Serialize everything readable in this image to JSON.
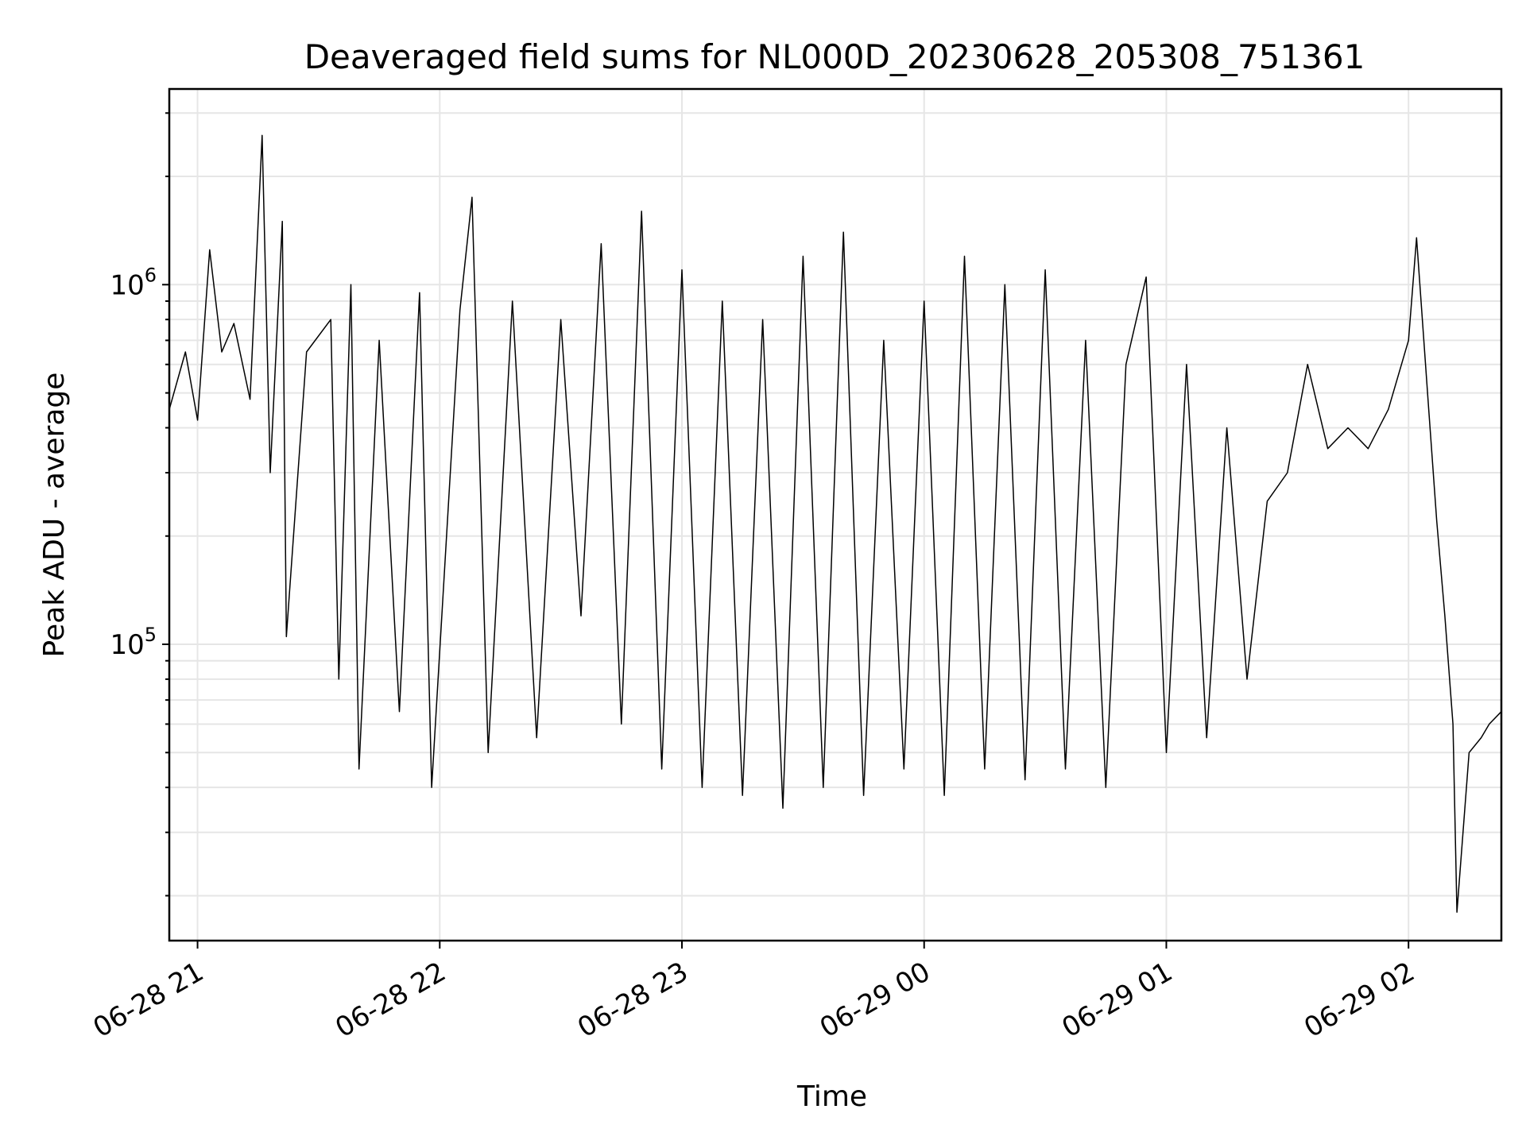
{
  "chart_data": {
    "type": "line",
    "title": "Deaveraged field sums for NL000D_20230628_205308_751361",
    "xlabel": "Time",
    "ylabel": "Peak ADU - average",
    "y_scale": "log",
    "ylim": [
      15000,
      3500000
    ],
    "xlim": [
      "2023-06-28 20:53",
      "2023-06-29 02:23"
    ],
    "grid": true,
    "line_color": "#000000",
    "x_ticks": [
      {
        "t": "2023-06-28 21:00",
        "label": "06-28 21"
      },
      {
        "t": "2023-06-28 22:00",
        "label": "06-28 22"
      },
      {
        "t": "2023-06-28 23:00",
        "label": "06-28 23"
      },
      {
        "t": "2023-06-29 00:00",
        "label": "06-29 00"
      },
      {
        "t": "2023-06-29 01:00",
        "label": "06-29 01"
      },
      {
        "t": "2023-06-29 02:00",
        "label": "06-29 02"
      }
    ],
    "y_ticks": [
      {
        "base": "10",
        "exp": "5",
        "value": 100000
      },
      {
        "base": "10",
        "exp": "6",
        "value": 1000000
      }
    ],
    "series": [
      {
        "values": [
          [
            "2023-06-28 20:53",
            450000
          ],
          [
            "2023-06-28 20:57",
            650000
          ],
          [
            "2023-06-28 21:00",
            420000
          ],
          [
            "2023-06-28 21:03",
            1250000
          ],
          [
            "2023-06-28 21:06",
            650000
          ],
          [
            "2023-06-28 21:09",
            780000
          ],
          [
            "2023-06-28 21:13",
            480000
          ],
          [
            "2023-06-28 21:16",
            2600000
          ],
          [
            "2023-06-28 21:18",
            300000
          ],
          [
            "2023-06-28 21:21",
            1500000
          ],
          [
            "2023-06-28 21:22",
            105000
          ],
          [
            "2023-06-28 21:27",
            650000
          ],
          [
            "2023-06-28 21:33",
            800000
          ],
          [
            "2023-06-28 21:35",
            80000
          ],
          [
            "2023-06-28 21:38",
            1000000
          ],
          [
            "2023-06-28 21:40",
            45000
          ],
          [
            "2023-06-28 21:45",
            700000
          ],
          [
            "2023-06-28 21:50",
            65000
          ],
          [
            "2023-06-28 21:55",
            950000
          ],
          [
            "2023-06-28 21:58",
            40000
          ],
          [
            "2023-06-28 22:05",
            850000
          ],
          [
            "2023-06-28 22:08",
            1750000
          ],
          [
            "2023-06-28 22:12",
            50000
          ],
          [
            "2023-06-28 22:18",
            900000
          ],
          [
            "2023-06-28 22:24",
            55000
          ],
          [
            "2023-06-28 22:30",
            800000
          ],
          [
            "2023-06-28 22:35",
            120000
          ],
          [
            "2023-06-28 22:40",
            1300000
          ],
          [
            "2023-06-28 22:45",
            60000
          ],
          [
            "2023-06-28 22:50",
            1600000
          ],
          [
            "2023-06-28 22:55",
            45000
          ],
          [
            "2023-06-28 23:00",
            1100000
          ],
          [
            "2023-06-28 23:05",
            40000
          ],
          [
            "2023-06-28 23:10",
            900000
          ],
          [
            "2023-06-28 23:15",
            38000
          ],
          [
            "2023-06-28 23:20",
            800000
          ],
          [
            "2023-06-28 23:25",
            35000
          ],
          [
            "2023-06-28 23:30",
            1200000
          ],
          [
            "2023-06-28 23:35",
            40000
          ],
          [
            "2023-06-28 23:40",
            1400000
          ],
          [
            "2023-06-28 23:45",
            38000
          ],
          [
            "2023-06-28 23:50",
            700000
          ],
          [
            "2023-06-28 23:55",
            45000
          ],
          [
            "2023-06-29 00:00",
            900000
          ],
          [
            "2023-06-29 00:05",
            38000
          ],
          [
            "2023-06-29 00:10",
            1200000
          ],
          [
            "2023-06-29 00:15",
            45000
          ],
          [
            "2023-06-29 00:20",
            1000000
          ],
          [
            "2023-06-29 00:25",
            42000
          ],
          [
            "2023-06-29 00:30",
            1100000
          ],
          [
            "2023-06-29 00:35",
            45000
          ],
          [
            "2023-06-29 00:40",
            700000
          ],
          [
            "2023-06-29 00:45",
            40000
          ],
          [
            "2023-06-29 00:50",
            600000
          ],
          [
            "2023-06-29 00:55",
            1050000
          ],
          [
            "2023-06-29 01:00",
            50000
          ],
          [
            "2023-06-29 01:05",
            600000
          ],
          [
            "2023-06-29 01:10",
            55000
          ],
          [
            "2023-06-29 01:15",
            400000
          ],
          [
            "2023-06-29 01:20",
            80000
          ],
          [
            "2023-06-29 01:25",
            250000
          ],
          [
            "2023-06-29 01:30",
            300000
          ],
          [
            "2023-06-29 01:35",
            600000
          ],
          [
            "2023-06-29 01:40",
            350000
          ],
          [
            "2023-06-29 01:45",
            400000
          ],
          [
            "2023-06-29 01:50",
            350000
          ],
          [
            "2023-06-29 01:55",
            450000
          ],
          [
            "2023-06-29 02:00",
            700000
          ],
          [
            "2023-06-29 02:02",
            1350000
          ],
          [
            "2023-06-29 02:05",
            450000
          ],
          [
            "2023-06-29 02:07",
            220000
          ],
          [
            "2023-06-29 02:09",
            120000
          ],
          [
            "2023-06-29 02:11",
            60000
          ],
          [
            "2023-06-29 02:12",
            18000
          ],
          [
            "2023-06-29 02:15",
            50000
          ],
          [
            "2023-06-29 02:18",
            55000
          ],
          [
            "2023-06-29 02:20",
            60000
          ],
          [
            "2023-06-29 02:23",
            65000
          ]
        ]
      }
    ]
  }
}
